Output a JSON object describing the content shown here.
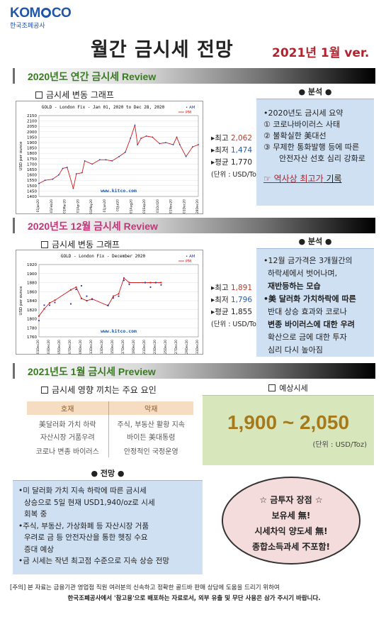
{
  "logo": {
    "text_a": "KOM",
    "text_b": "CO",
    "sub": "한국조폐공사"
  },
  "title": "월간 금시세 전망",
  "version": "2021년 1월 ver.",
  "section1": {
    "heading": "2020년도 연간 금시세 Review",
    "graph_label": "금시세 변동 그래프",
    "stats": {
      "max_label": "최고",
      "max": "2,062",
      "min_label": "최저",
      "min": "1,474",
      "avg_label": "평균",
      "avg": "1,770",
      "unit": "(단위 : USD/Toz)"
    },
    "analysis_title": "● 분석 ●",
    "analysis_summary": "•2020년도 금시세 요약",
    "analysis_items": [
      "① 코로나바이러스 사태",
      "② 불확실한 美대선",
      "③ 무제한 통화발행 등에 따른",
      "안전자산 선호 심리 강화로"
    ],
    "analysis_result_a": "☞ 역사상 최고가",
    "analysis_result_b": " 기록"
  },
  "section2": {
    "heading": "2020년도 12월 금시세 Review",
    "graph_label": "금시세 변동 그래프",
    "stats": {
      "max_label": "최고",
      "max": "1,891",
      "min_label": "최저",
      "min": "1,796",
      "avg_label": "평균",
      "avg": "1,855",
      "unit": "(단위 : USD/Toz)"
    },
    "analysis_title": "● 분석 ●",
    "analysis_text": [
      "•12월 금가격은 3개월간의",
      "하락세에서 벗어나며,",
      "재반등하는 모습",
      "•美 달러화 가치하락에 따른",
      "반대 상승 효과와 코로나",
      "변종 바이러스에 대한 우려",
      "확산으로 금에 대한 투자",
      "심리 다시 높아짐"
    ]
  },
  "section3": {
    "heading": "2021년도 1월 금시세 Preview",
    "factors_label": "금시세 영향 끼치는 주요 요인",
    "good_header": "호재",
    "bad_header": "악재",
    "good": [
      "美달러화 가치 하락",
      "자산시장 거품우려",
      "코로나 변종 바이러스"
    ],
    "bad": [
      "주식, 부동산 활황 지속",
      "바이든 美대통령",
      "안정적인 국정운영"
    ],
    "forecast_label": "예상시세",
    "forecast_value": "1,900 ~ 2,050",
    "forecast_unit": "(단위 : USD/Toz)",
    "outlook_title": "● 전망 ●",
    "outlook_text": [
      "•미 달러화 가치 지속 하락에 따른 금시세",
      "상승으로 5일 현재 USD1,940/oz로 시세",
      "회복 중",
      "•주식, 부동산, 가상화폐 등 자산시장 거품",
      "우려로 금 등 안전자산을 통한 헷징 수요",
      "증대 예상",
      "•금 시세는 작년 최고점 수준으로 지속 상승 전망"
    ],
    "ellipse": [
      "☆ 금투자 장점 ☆",
      "보유세 無!",
      "시세차익 양도세 無!",
      "종합소득과세 不포함!"
    ]
  },
  "footer": [
    "[주의] 본 자료는 금융기관 영업점 직원 여러분의 신속하고 정확한 골드바 판매 상담에 도움을 드리기 위하여",
    "한국조폐공사에서 '참고용'으로 배포하는 자료로서, 외부 유출 및 무단 사용은 삼가 주시기 바랍니다."
  ],
  "chart_data": [
    {
      "type": "line",
      "title": "GOLD - London Fix - Jan 01, 2020 to Dec 28, 2020",
      "ylabel": "USD per ounce",
      "watermark": "www.kitco.com",
      "legend": [
        "AM",
        "PM"
      ],
      "ylim": [
        1400,
        2150
      ],
      "yticks": [
        1400,
        1450,
        1500,
        1550,
        1600,
        1650,
        1700,
        1750,
        1800,
        1850,
        1900,
        1950,
        2000,
        2050,
        2100,
        2150
      ],
      "xticks": [
        "01Jan20",
        "01Feb20",
        "01Mar20",
        "01Apr20",
        "01May20",
        "01Jun20",
        "01Jul20",
        "01Aug20",
        "01Sep20",
        "01Oct20",
        "01Nov20",
        "01Dec20",
        "28Dec20"
      ],
      "series": [
        {
          "name": "PM",
          "x": [
            "01Jan20",
            "15Jan20",
            "01Feb20",
            "15Feb20",
            "24Feb20",
            "05Mar20",
            "19Mar20",
            "26Mar20",
            "08Apr20",
            "14Apr20",
            "01May20",
            "18May20",
            "01Jun20",
            "15Jun20",
            "01Jul20",
            "15Jul20",
            "27Jul20",
            "06Aug20",
            "12Aug20",
            "20Aug20",
            "01Sep20",
            "15Sep20",
            "01Oct20",
            "15Oct20",
            "01Nov20",
            "09Nov20",
            "16Nov20",
            "30Nov20",
            "15Dec20",
            "28Dec20"
          ],
          "values": [
            1520,
            1550,
            1560,
            1600,
            1660,
            1670,
            1474,
            1610,
            1620,
            1730,
            1700,
            1740,
            1740,
            1730,
            1770,
            1810,
            1940,
            2062,
            1880,
            1940,
            1960,
            1950,
            1890,
            1900,
            1880,
            1950,
            1880,
            1770,
            1860,
            1880
          ]
        }
      ]
    },
    {
      "type": "line",
      "title": "GOLD - London Fix - December 2020",
      "ylabel": "USD per ounce",
      "watermark": "www.kitco.com",
      "legend": [
        "AM",
        "PM"
      ],
      "ylim": [
        1760,
        1920
      ],
      "yticks": [
        1760,
        1780,
        1800,
        1820,
        1840,
        1860,
        1880,
        1900,
        1920
      ],
      "xticks": [
        "01Dec20",
        "03Dec20",
        "05Dec20",
        "07Dec20",
        "09Dec20",
        "11Dec20",
        "13Dec20",
        "15Dec20",
        "17Dec20",
        "19Dec20",
        "21Dec20",
        "23Dec20",
        "25Dec20",
        "27Dec20",
        "29Dec20",
        "31Dec20"
      ],
      "series": [
        {
          "name": "AM",
          "x": [
            1,
            2,
            3,
            4,
            7,
            8,
            9,
            10,
            11,
            14,
            15,
            16,
            17,
            18,
            21,
            22,
            23,
            24
          ],
          "values": [
            1796,
            1830,
            1830,
            1836,
            1833,
            1865,
            1873,
            1850,
            1843,
            1830,
            1846,
            1850,
            1885,
            1876,
            1880,
            1870,
            1880,
            1875
          ]
        },
        {
          "name": "PM",
          "x": [
            1,
            2,
            3,
            4,
            7,
            8,
            9,
            10,
            11,
            14,
            15,
            16,
            17,
            18,
            21,
            22,
            23,
            24
          ],
          "values": [
            1806,
            1822,
            1835,
            1841,
            1864,
            1870,
            1845,
            1840,
            1844,
            1829,
            1850,
            1855,
            1890,
            1880,
            1880,
            1880,
            1880,
            1880
          ]
        }
      ]
    }
  ]
}
